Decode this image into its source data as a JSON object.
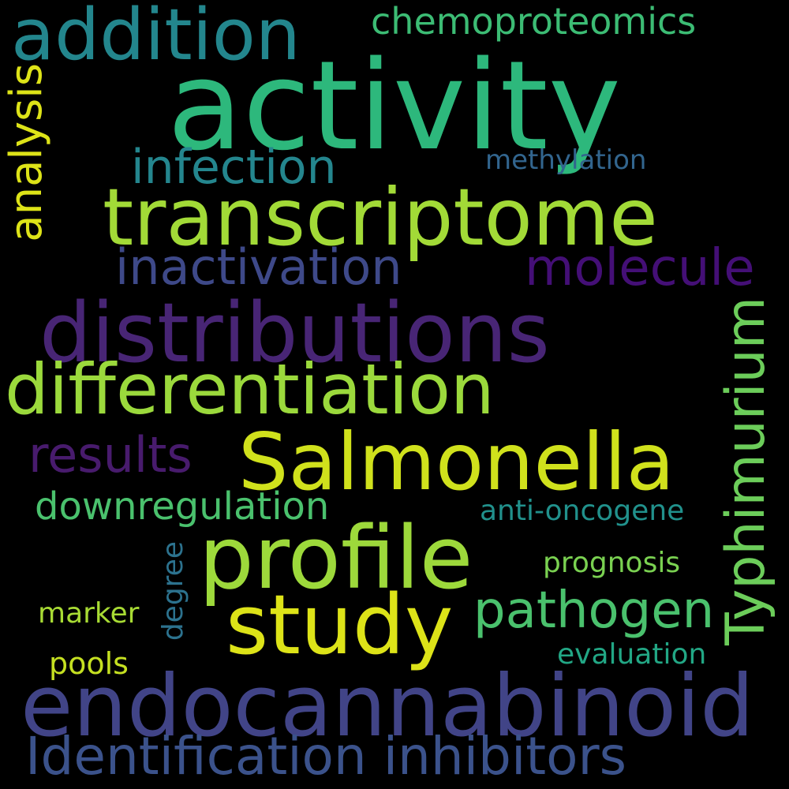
{
  "cloud": {
    "background": "#000000",
    "words": {
      "activity": {
        "text": "activity",
        "color": "#2DB87C"
      },
      "addition": {
        "text": "addition",
        "color": "#23868D"
      },
      "chemoproteomics": {
        "text": "chemoproteomics",
        "color": "#3CBC74"
      },
      "analysis": {
        "text": "analysis",
        "color": "#DDE318"
      },
      "infection": {
        "text": "infection",
        "color": "#24868E"
      },
      "methylation": {
        "text": "methylation",
        "color": "#32658E"
      },
      "transcriptome": {
        "text": "transcriptome",
        "color": "#A2DA37"
      },
      "inactivation": {
        "text": "inactivation",
        "color": "#3E4989"
      },
      "molecule": {
        "text": "molecule",
        "color": "#440F76"
      },
      "distributions": {
        "text": "distributions",
        "color": "#482575"
      },
      "typhimurium": {
        "text": "Typhimurium",
        "color": "#6CCD5A"
      },
      "differentiation": {
        "text": "differentiation",
        "color": "#9BD93C"
      },
      "salmonella": {
        "text": "Salmonella",
        "color": "#D0E11C"
      },
      "results": {
        "text": "results",
        "color": "#481B6D"
      },
      "downregulation": {
        "text": "downregulation",
        "color": "#4AC16D"
      },
      "anti_oncogene": {
        "text": "anti-oncogene",
        "color": "#21918C"
      },
      "profile": {
        "text": "profile",
        "color": "#9DD93B"
      },
      "prognosis": {
        "text": "prognosis",
        "color": "#7AD151"
      },
      "degree": {
        "text": "degree",
        "color": "#2C728E"
      },
      "pathogen": {
        "text": "pathogen",
        "color": "#4AC16D"
      },
      "study": {
        "text": "study",
        "color": "#DDE318"
      },
      "marker": {
        "text": "marker",
        "color": "#A8DB34"
      },
      "evaluation": {
        "text": "evaluation",
        "color": "#22A785"
      },
      "pools": {
        "text": "pools",
        "color": "#C5E021"
      },
      "endocannabinoid": {
        "text": "endocannabinoid",
        "color": "#414487"
      },
      "identification": {
        "text": "Identification inhibitors",
        "color": "#3B528B"
      }
    }
  }
}
